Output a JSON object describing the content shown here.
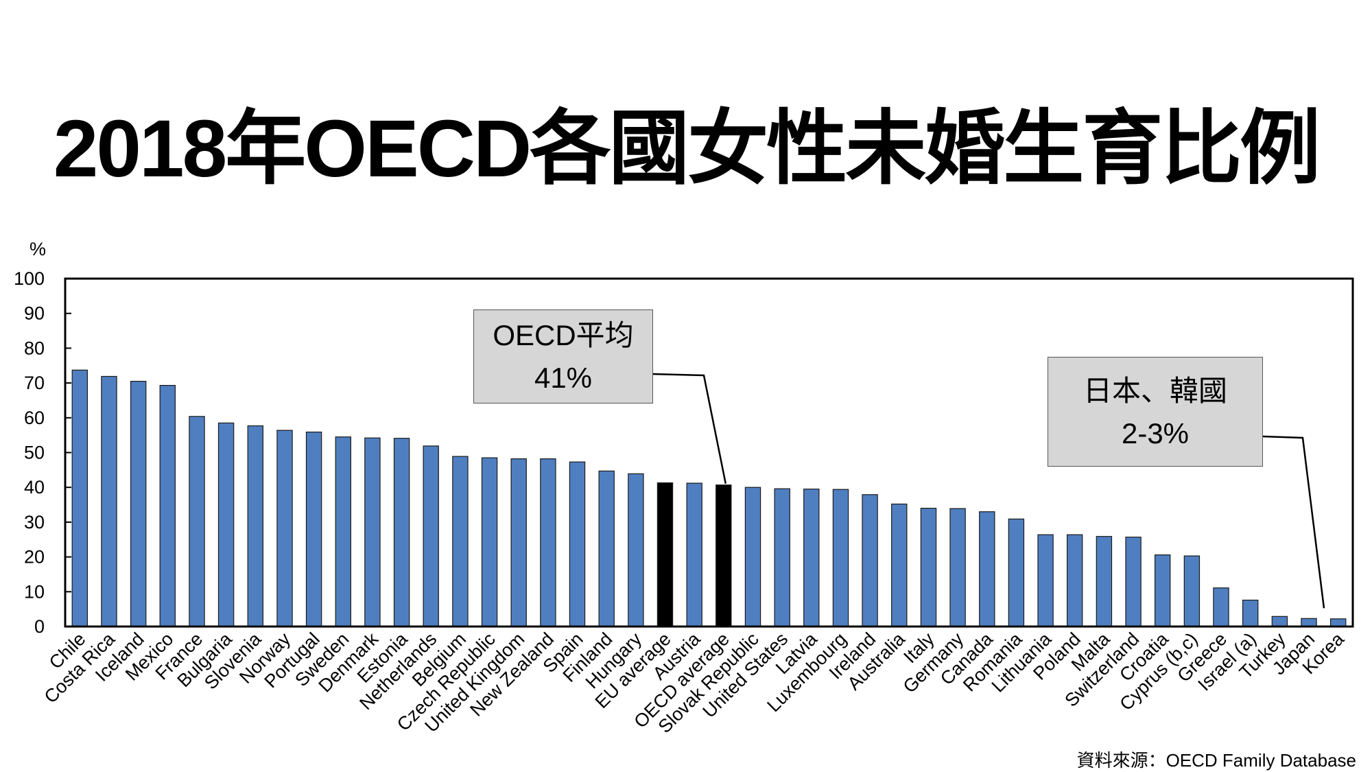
{
  "title": "2018年OECD各國女性未婚生育比例",
  "annotations": {
    "oecd": {
      "line1": "OECD平均",
      "line2": "41%"
    },
    "japan_korea": {
      "line1": "日本、韓國",
      "line2": "2-3%"
    }
  },
  "source": "資料來源：OECD Family Database",
  "colors": {
    "bar": "#4f7fc0",
    "highlight": "#000000"
  },
  "chart_data": {
    "type": "bar",
    "title": "2018年OECD各國女性未婚生育比例",
    "ylabel": "%",
    "xlabel": "",
    "ylim": [
      0,
      100
    ],
    "yticks": [
      0,
      10,
      20,
      30,
      40,
      50,
      60,
      70,
      80,
      90,
      100
    ],
    "grid": false,
    "categories": [
      "Chile",
      "Costa Rica",
      "Iceland",
      "Mexico",
      "France",
      "Bulgaria",
      "Slovenia",
      "Norway",
      "Portugal",
      "Sweden",
      "Denmark",
      "Estonia",
      "Netherlands",
      "Belgium",
      "Czech Republic",
      "United Kingdom",
      "New Zealand",
      "Spain",
      "Finland",
      "Hungary",
      "EU average",
      "Austria",
      "OECD average",
      "Slovak Republic",
      "United States",
      "Latvia",
      "Luxembourg",
      "Ireland",
      "Australia",
      "Italy",
      "Germany",
      "Canada",
      "Romania",
      "Lithuania",
      "Poland",
      "Malta",
      "Switzerland",
      "Croatia",
      "Cyprus (b,c)",
      "Greece",
      "Israel (a)",
      "Turkey",
      "Japan",
      "Korea"
    ],
    "values": [
      73.7,
      71.9,
      70.5,
      69.3,
      60.4,
      58.5,
      57.7,
      56.4,
      55.9,
      54.5,
      54.2,
      54.1,
      51.9,
      48.9,
      48.5,
      48.2,
      48.2,
      47.3,
      44.7,
      43.9,
      41.3,
      41.2,
      40.7,
      40.0,
      39.6,
      39.5,
      39.4,
      37.9,
      35.2,
      34.0,
      33.9,
      33.0,
      30.9,
      26.4,
      26.4,
      25.9,
      25.7,
      20.6,
      20.3,
      11.1,
      7.6,
      2.9,
      2.3,
      2.2
    ],
    "highlighted": [
      "EU average",
      "OECD average"
    ]
  }
}
